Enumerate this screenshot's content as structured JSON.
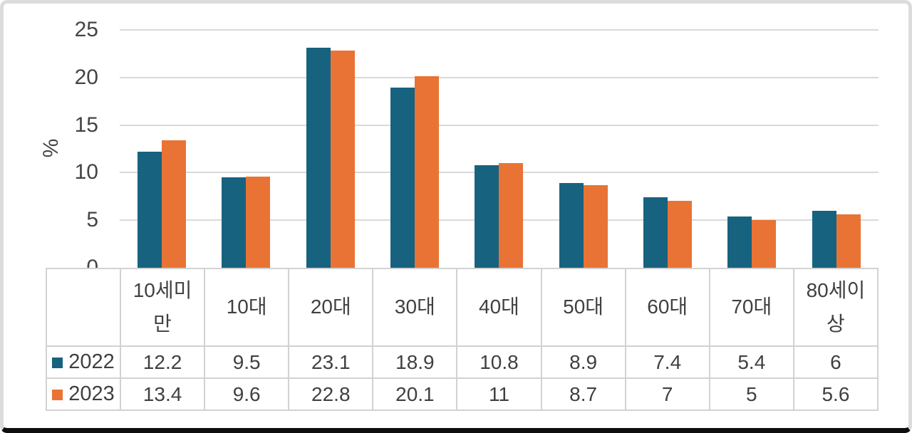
{
  "chart_data": {
    "type": "bar",
    "title": "",
    "ylabel": "%",
    "xlabel": "",
    "ylim": [
      0,
      25
    ],
    "yticks": [
      25,
      20,
      15,
      10,
      5,
      0
    ],
    "grid": true,
    "legend_position": "table-left",
    "categories": [
      "10세미만",
      "10대",
      "20대",
      "30대",
      "40대",
      "50대",
      "60대",
      "70대",
      "80세이상"
    ],
    "series": [
      {
        "name": "2022",
        "color": "#17627F",
        "values": [
          12.2,
          9.5,
          23.1,
          18.9,
          10.8,
          8.9,
          7.4,
          5.4,
          6
        ]
      },
      {
        "name": "2023",
        "color": "#E97335",
        "values": [
          13.4,
          9.6,
          22.8,
          20.1,
          11,
          8.7,
          7,
          5,
          5.6
        ]
      }
    ]
  },
  "colors": {
    "grid": "#d9d9d9",
    "table_border": "#d2d2d2",
    "text": "#404040",
    "card_border": "#dcdcdc",
    "card_bottom_border": "#0e0e0e"
  }
}
